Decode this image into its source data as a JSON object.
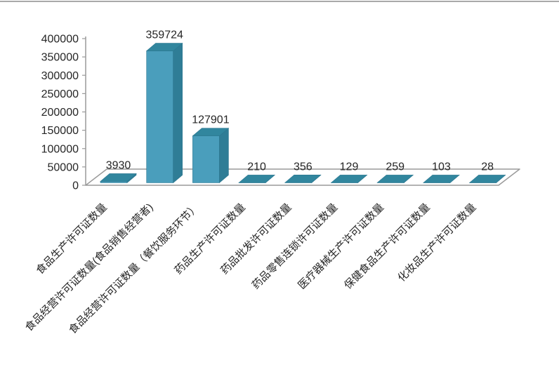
{
  "page": {
    "background_color": "#ffffff",
    "top_border_color": "#a9a9a9"
  },
  "chart_data": {
    "type": "bar",
    "projection": "3d",
    "title": "",
    "xlabel": "",
    "ylabel": "",
    "grid": "off",
    "legend": "none",
    "categories": [
      "食品生产许可证数量",
      "食品经营许可证数量(食品销售经营者)",
      "食品经营许可证数量（餐饮服务环节）",
      "药品生产许可证数量",
      "药品批发许可证数量",
      "药品零售连锁许可证数量",
      "医疗器械生产许可证数量",
      "保健食品生产许可证数量",
      "化妆品生产许可证数量"
    ],
    "values": [
      3930,
      359724,
      127901,
      210,
      356,
      129,
      259,
      103,
      28
    ],
    "value_labels": [
      "3930",
      "359724",
      "127901",
      "210",
      "356",
      "129",
      "259",
      "103",
      "28"
    ],
    "ylim": [
      0,
      400000
    ],
    "yticks": [
      0,
      50000,
      100000,
      150000,
      200000,
      250000,
      300000,
      350000,
      400000
    ],
    "ytick_labels": [
      "0",
      "50000",
      "100000",
      "150000",
      "200000",
      "250000",
      "300000",
      "350000",
      "400000"
    ],
    "colors": {
      "bar_front": "#4a9ebc",
      "bar_top": "#31869e",
      "bar_side": "#2f7d96",
      "bar_outline": "#2c7790",
      "axis_line": "#9a9a9a",
      "text": "#262626"
    }
  }
}
